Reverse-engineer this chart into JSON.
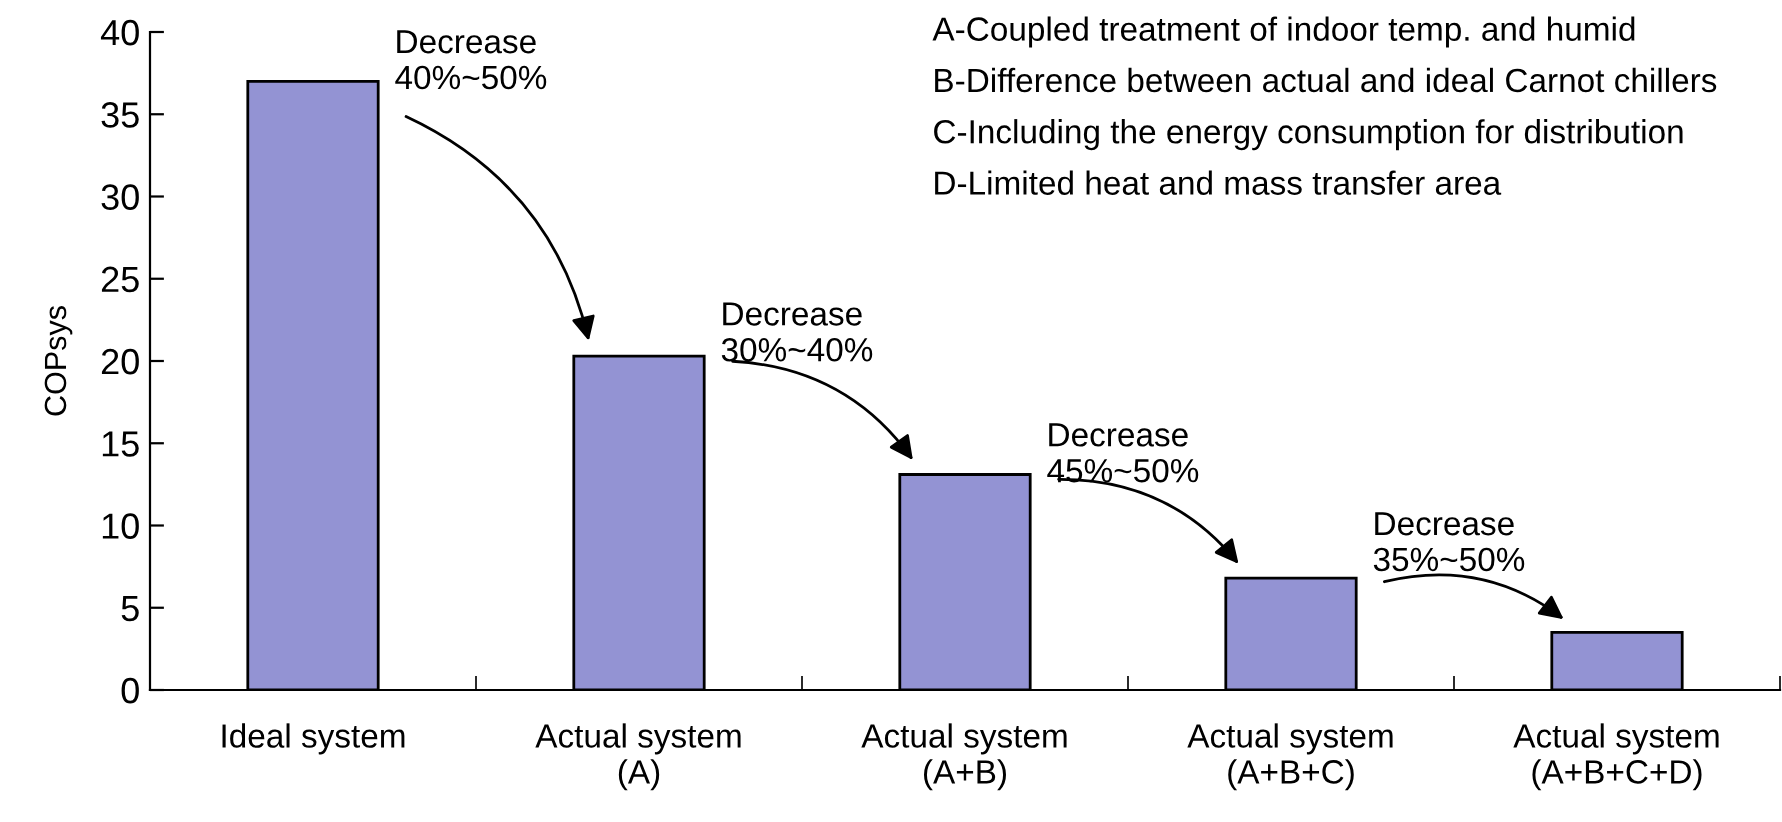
{
  "chart_data": {
    "type": "bar",
    "ylabel": "COPsys",
    "categories": [
      "Ideal system",
      "Actual system\n(A)",
      "Actual system\n(A+B)",
      "Actual system\n(A+B+C)",
      "Actual system\n(A+B+C+D)"
    ],
    "values": [
      37.0,
      20.3,
      13.1,
      6.8,
      3.5
    ],
    "color": "#9393d3",
    "ylim": [
      0,
      40
    ],
    "yticks": [
      0,
      5,
      10,
      15,
      20,
      25,
      30,
      35,
      40
    ],
    "annotations": [
      "Decrease\n40%~50%",
      "Decrease\n30%~40%",
      "Decrease\n45%~50%",
      "Decrease\n35%~50%",
      "A-Coupled treatment of indoor temp. and humid",
      "B-Difference between actual and ideal Carnot chillers",
      "C-Including the energy consumption for distribution",
      "D-Limited heat and mass transfer area"
    ]
  }
}
